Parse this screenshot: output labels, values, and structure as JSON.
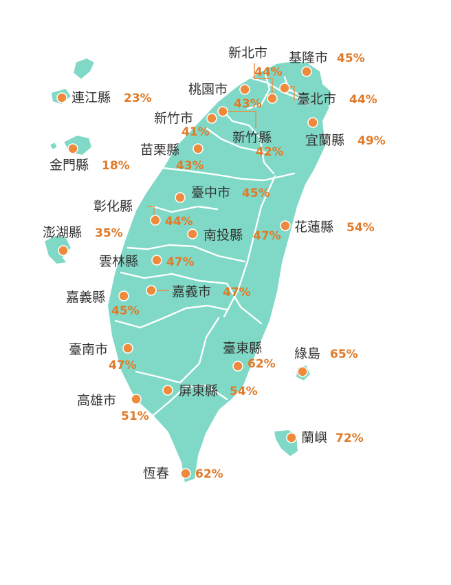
{
  "colors": {
    "land": "#7fd9c6",
    "marker": "#ef8a3c",
    "percent": "#e07a28",
    "label": "#333333"
  },
  "regions": [
    {
      "id": "xinbei",
      "name": "新北市",
      "value": "44%"
    },
    {
      "id": "keelung",
      "name": "基隆市",
      "value": "45%"
    },
    {
      "id": "taoyuan",
      "name": "桃園市",
      "value": "43%"
    },
    {
      "id": "taipei",
      "name": "臺北市",
      "value": "44%"
    },
    {
      "id": "lienchiang",
      "name": "連江縣",
      "value": "23%"
    },
    {
      "id": "hsinchu-city",
      "name": "新竹市",
      "value": "41%"
    },
    {
      "id": "hsinchu-county",
      "name": "新竹縣",
      "value": "42%"
    },
    {
      "id": "yilan",
      "name": "宜蘭縣",
      "value": "49%"
    },
    {
      "id": "kinmen",
      "name": "金門縣",
      "value": "18%"
    },
    {
      "id": "miaoli",
      "name": "苗栗縣",
      "value": "43%"
    },
    {
      "id": "taichung",
      "name": "臺中市",
      "value": "45%"
    },
    {
      "id": "changhua",
      "name": "彰化縣",
      "value": "44%"
    },
    {
      "id": "hualien",
      "name": "花蓮縣",
      "value": "54%"
    },
    {
      "id": "penghu",
      "name": "澎湖縣",
      "value": "35%"
    },
    {
      "id": "nantou",
      "name": "南投縣",
      "value": "47%"
    },
    {
      "id": "yunlin",
      "name": "雲林縣",
      "value": "47%"
    },
    {
      "id": "chiayi-county",
      "name": "嘉義縣",
      "value": "45%"
    },
    {
      "id": "chiayi-city",
      "name": "嘉義市",
      "value": "47%"
    },
    {
      "id": "taitung",
      "name": "臺東縣",
      "value": "62%"
    },
    {
      "id": "tainan",
      "name": "臺南市",
      "value": "47%"
    },
    {
      "id": "green-island",
      "name": "綠島",
      "value": "65%"
    },
    {
      "id": "pingtung",
      "name": "屏東縣",
      "value": "54%"
    },
    {
      "id": "kaohsiung",
      "name": "高雄市",
      "value": "51%"
    },
    {
      "id": "orchid-island",
      "name": "蘭嶼",
      "value": "72%"
    },
    {
      "id": "hengchun",
      "name": "恆春",
      "value": "62%"
    }
  ]
}
